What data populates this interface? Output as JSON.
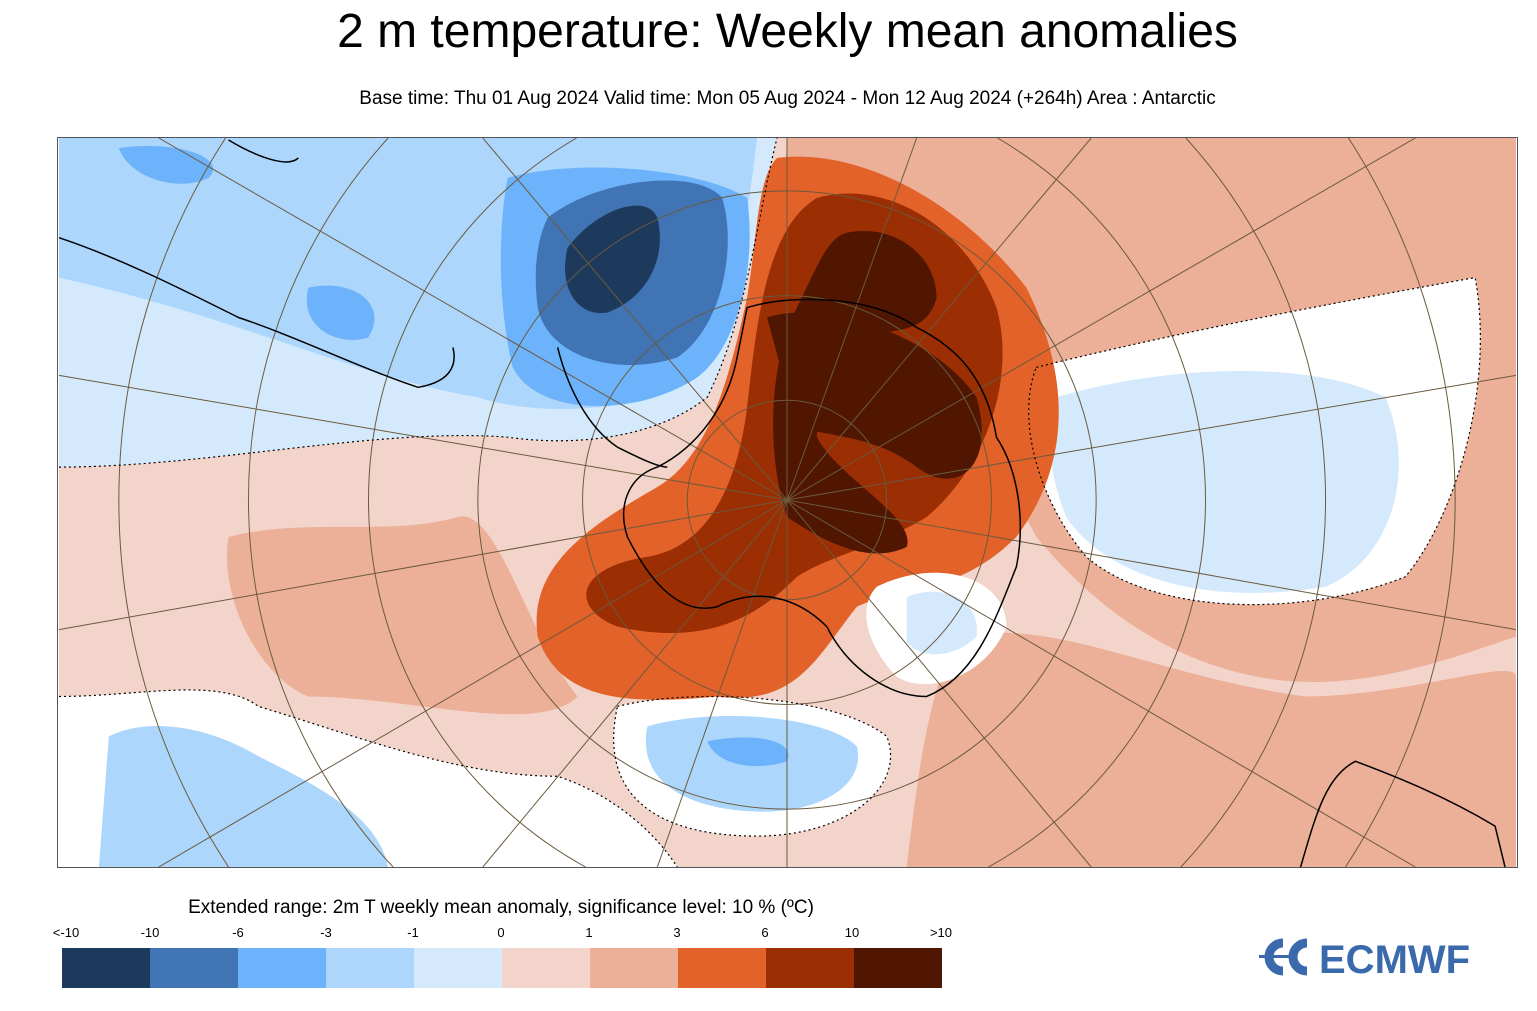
{
  "header": {
    "title": "2 m temperature: Weekly mean anomalies",
    "subtitle": "Base time: Thu 01 Aug 2024 Valid time: Mon 05 Aug 2024 - Mon 12 Aug 2024 (+264h) Area : Antarctic"
  },
  "map": {
    "area": "Antarctic",
    "projection": "polar stereographic",
    "graticule": true,
    "coastlines": true,
    "significance_contour": "dotted"
  },
  "legend": {
    "title": "Extended range: 2m T weekly mean anomaly, significance level: 10 % (ºC)",
    "ticks": [
      "<-10",
      "-10",
      "-6",
      "-3",
      "-1",
      "0",
      "1",
      "3",
      "6",
      "10",
      ">10"
    ],
    "colors": [
      "#1d3a5c",
      "#4174b4",
      "#6cb3fb",
      "#acd6fb",
      "#d4e9fc",
      "#f3d4ca",
      "#ecaf97",
      "#e26229",
      "#9b2e03",
      "#501602"
    ]
  },
  "logo": {
    "text": "ECMWF",
    "color": "#3a6aab"
  }
}
